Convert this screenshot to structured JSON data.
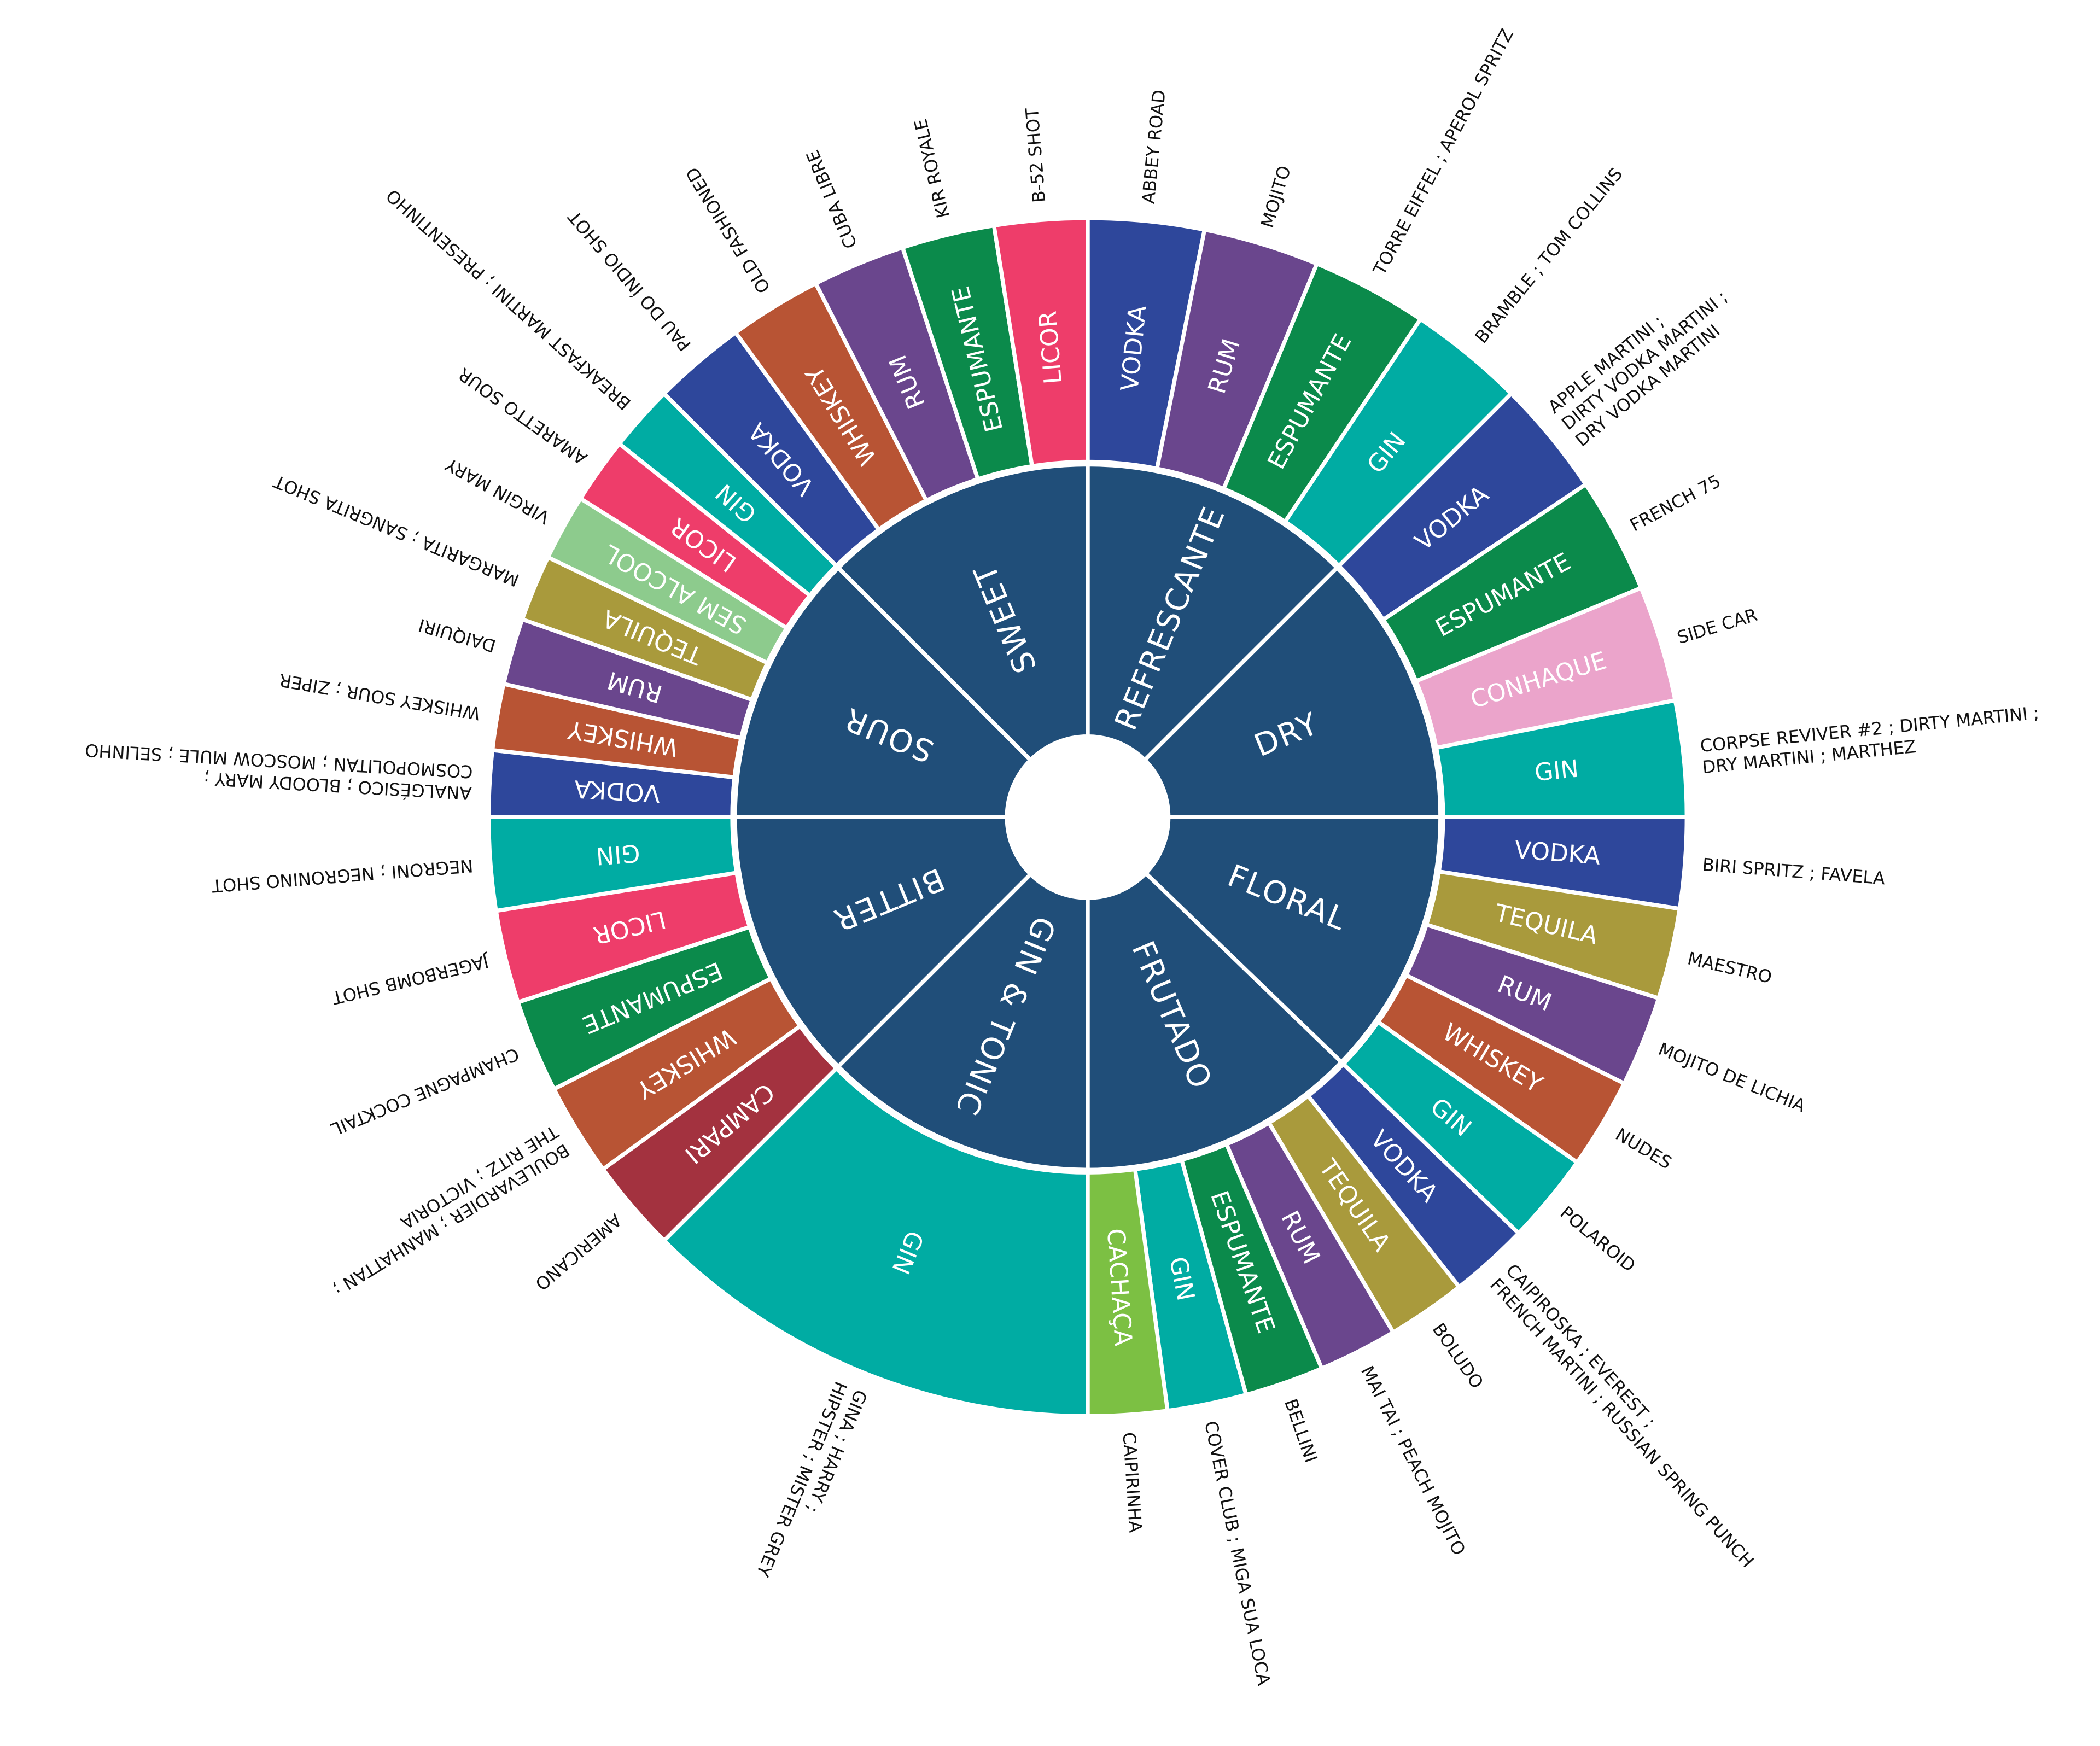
{
  "categories": [
    {
      "name": "REFRESCANTE",
      "segments": [
        {
          "spirit": "VODKA",
          "color": "#2e479b",
          "cocktails": [
            "ABBEY ROAD"
          ]
        },
        {
          "spirit": "RUM",
          "color": "#6a468d",
          "cocktails": [
            "MOJITO"
          ]
        },
        {
          "spirit": "ESPUMANTE",
          "color": "#0b8a4b",
          "cocktails": [
            "TORRE EIFFEL ; APEROL SPRITZ"
          ]
        },
        {
          "spirit": "GIN",
          "color": "#00aca3",
          "cocktails": [
            "BRAMBLE ; TOM COLLINS"
          ]
        }
      ]
    },
    {
      "name": "DRY",
      "segments": [
        {
          "spirit": "VODKA",
          "color": "#2e479b",
          "cocktails": [
            "APPLE MARTINI ;",
            "DIRTY VODKA MARTINI ;",
            "DRY VODKA MARTINI"
          ]
        },
        {
          "spirit": "ESPUMANTE",
          "color": "#0b8a4b",
          "cocktails": [
            "FRENCH 75"
          ]
        },
        {
          "spirit": "CONHAQUE",
          "color": "#eba4cb",
          "cocktails": [
            "SIDE CAR"
          ]
        },
        {
          "spirit": "GIN",
          "color": "#00aca3",
          "cocktails": [
            "CORPSE REVIVER #2 ; DIRTY MARTINI ;",
            "DRY MARTINI ; MARTHEZ"
          ]
        }
      ]
    },
    {
      "name": "FLORAL",
      "segments": [
        {
          "spirit": "VODKA",
          "color": "#2e479b",
          "cocktails": [
            "BIRI SPRITZ ; FAVELA"
          ]
        },
        {
          "spirit": "TEQUILA",
          "color": "#a99a3c",
          "cocktails": [
            "MAESTRO"
          ]
        },
        {
          "spirit": "RUM",
          "color": "#6a468d",
          "cocktails": [
            "MOJITO DE LICHIA"
          ]
        },
        {
          "spirit": "WHISKEY",
          "color": "#b85434",
          "cocktails": [
            "NUDES"
          ]
        },
        {
          "spirit": "GIN",
          "color": "#00aca3",
          "cocktails": [
            "POLAROID"
          ]
        }
      ]
    },
    {
      "name": "FRUTADO",
      "segments": [
        {
          "spirit": "VODKA",
          "color": "#2e479b",
          "cocktails": [
            "CAIPIROSKA ; EVEREST ;",
            "FRENCH MARTINI ; RUSSIAN SPRING PUNCH"
          ]
        },
        {
          "spirit": "TEQUILA",
          "color": "#a99a3c",
          "cocktails": [
            "BOLUDO"
          ]
        },
        {
          "spirit": "RUM",
          "color": "#6a468d",
          "cocktails": [
            "MAI TAI ; PEACH MOJITO"
          ]
        },
        {
          "spirit": "ESPUMANTE",
          "color": "#0b8a4b",
          "cocktails": [
            "BELLINI"
          ]
        },
        {
          "spirit": "GIN",
          "color": "#00aca3",
          "cocktails": [
            "COVER CLUB ; MIGA SUA LOCA"
          ]
        },
        {
          "spirit": "CACHAÇA",
          "color": "#7cc043",
          "cocktails": [
            "CAIPIRINHA"
          ]
        }
      ]
    },
    {
      "name": "GIN & TONIC",
      "segments": [
        {
          "spirit": "GIN",
          "color": "#00aca3",
          "cocktails": [
            "GINA ; HARRY ;",
            "HIPSTER ; MISTER GREY"
          ]
        }
      ]
    },
    {
      "name": "BITTER",
      "segments": [
        {
          "spirit": "CAMPARI",
          "color": "#a3323f",
          "cocktails": [
            "AMERICANO"
          ]
        },
        {
          "spirit": "WHISKEY",
          "color": "#b85434",
          "cocktails": [
            "BOULEVARDIER ; MANHATTAN ;",
            "THE RITZ ; VICTORIA"
          ]
        },
        {
          "spirit": "ESPUMANTE",
          "color": "#0b8a4b",
          "cocktails": [
            "CHAMPAGNE COCKTAIL"
          ]
        },
        {
          "spirit": "LICOR",
          "color": "#ee3d6a",
          "cocktails": [
            "JAGERBOMB SHOT"
          ]
        },
        {
          "spirit": "GIN",
          "color": "#00aca3",
          "cocktails": [
            "NEGRONI ; NEGRONINO SHOT"
          ]
        }
      ]
    },
    {
      "name": "SOUR",
      "segments": [
        {
          "spirit": "VODKA",
          "color": "#2e479b",
          "cocktails": [
            "ANALGÉSICO ; BLOODY MARY ;",
            "COSMOPOLITAN ; MOSCOW MULE ; SELINHO"
          ]
        },
        {
          "spirit": "WHISKEY",
          "color": "#b85434",
          "cocktails": [
            "WHISKEY SOUR ; ZIPER"
          ]
        },
        {
          "spirit": "RUM",
          "color": "#6a468d",
          "cocktails": [
            "DAIQUIRI"
          ]
        },
        {
          "spirit": "TEQUILA",
          "color": "#a99a3c",
          "cocktails": [
            "MARGARITA ; SANGRITA SHOT"
          ]
        },
        {
          "spirit": "SEM ALCOOL",
          "color": "#8dcb8d",
          "cocktails": [
            "VIRGIN MARY"
          ]
        },
        {
          "spirit": "LICOR",
          "color": "#ee3d6a",
          "cocktails": [
            "AMARETTO SOUR"
          ]
        },
        {
          "spirit": "GIN",
          "color": "#00aca3",
          "cocktails": [
            "BREAKFAST MARTINI ; PRESENTINHO"
          ]
        }
      ]
    },
    {
      "name": "SWEET",
      "segments": [
        {
          "spirit": "VODKA",
          "color": "#2e479b",
          "cocktails": [
            "PAU DO ÍNDIO SHOT"
          ]
        },
        {
          "spirit": "WHISKEY",
          "color": "#b85434",
          "cocktails": [
            "OLD FASHIONED"
          ]
        },
        {
          "spirit": "RUM",
          "color": "#6a468d",
          "cocktails": [
            "CUBA LIBRE"
          ]
        },
        {
          "spirit": "ESPUMANTE",
          "color": "#0b8a4b",
          "cocktails": [
            "KIR ROYALE"
          ]
        },
        {
          "spirit": "LICOR",
          "color": "#ee3d6a",
          "cocktails": [
            "B-52 SHOT"
          ]
        }
      ]
    }
  ]
}
